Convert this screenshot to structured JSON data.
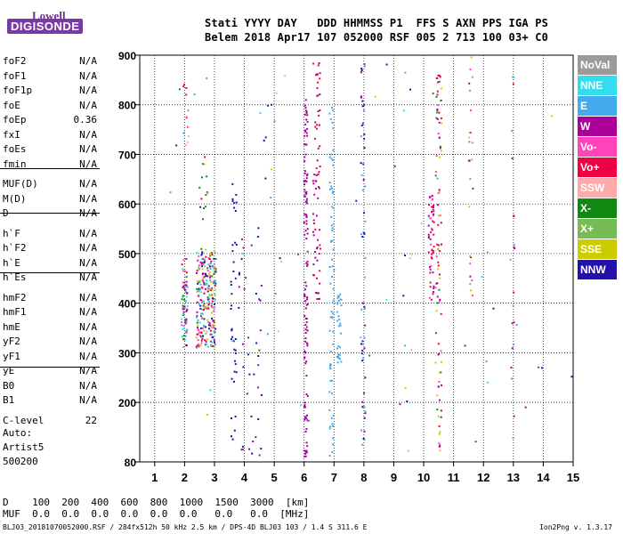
{
  "logo": {
    "top": "Lowell",
    "bottom": "DIGISONDE"
  },
  "header": {
    "keys": "Stati YYYY DAY   DDD HHMMSS P1  FFS S AXN PPS IGA PS",
    "values": "Belem 2018 Apr17 107 052000 RSF 005 2 713 100 03+ C0"
  },
  "params": [
    {
      "name": "foF2",
      "value": "N/A"
    },
    {
      "name": "foF1",
      "value": "N/A"
    },
    {
      "name": "foF1p",
      "value": "N/A"
    },
    {
      "name": "foE",
      "value": "N/A"
    },
    {
      "name": "foEp",
      "value": "0.36"
    },
    {
      "name": "fxI",
      "value": "N/A"
    },
    {
      "name": "foEs",
      "value": "N/A"
    },
    {
      "name": "fmin",
      "value": "N/A"
    },
    {
      "name": "MUF(D)",
      "value": "N/A"
    },
    {
      "name": "M(D)",
      "value": "N/A"
    },
    {
      "name": "D",
      "value": "N/A"
    },
    {
      "name": "h`F",
      "value": "N/A"
    },
    {
      "name": "h`F2",
      "value": "N/A"
    },
    {
      "name": "h`E",
      "value": "N/A"
    },
    {
      "name": "h`Es",
      "value": "N/A"
    },
    {
      "name": "hmF2",
      "value": "N/A"
    },
    {
      "name": "hmF1",
      "value": "N/A"
    },
    {
      "name": "hmE",
      "value": "N/A"
    },
    {
      "name": "yF2",
      "value": "N/A"
    },
    {
      "name": "yF1",
      "value": "N/A"
    },
    {
      "name": "yE",
      "value": "N/A"
    },
    {
      "name": "B0",
      "value": "N/A"
    },
    {
      "name": "B1",
      "value": "N/A"
    },
    {
      "name": "C-level",
      "value": "22"
    }
  ],
  "auto": [
    "Auto:",
    "Artist5",
    "500200"
  ],
  "legend": [
    {
      "label": "NoVal",
      "color": "#9b9b9b"
    },
    {
      "label": "NNE",
      "color": "#33ddee"
    },
    {
      "label": "E",
      "color": "#44aaee"
    },
    {
      "label": "W",
      "color": "#aa0099"
    },
    {
      "label": "Vo-",
      "color": "#ff44bb"
    },
    {
      "label": "Vo+",
      "color": "#ee0044"
    },
    {
      "label": "SSW",
      "color": "#ffaaaa"
    },
    {
      "label": "X-",
      "color": "#118811"
    },
    {
      "label": "X+",
      "color": "#77bb55"
    },
    {
      "label": "SSE",
      "color": "#cccc00"
    },
    {
      "label": "NNW",
      "color": "#2211aa"
    }
  ],
  "bottom": {
    "line1": "D    100  200  400  600  800  1000  1500  3000  [km]",
    "line2": "MUF  0.0  0.0  0.0  0.0  0.0  0.0   0.0   0.0  [MHz]"
  },
  "footer": {
    "left": "BLJ03_20181070052000.RSF / 284fx512h 50 kHz 2.5 km / DPS-4D BLJ03 103 / 1.4 S 311.6 E",
    "right": "Ion2Png v. 1.3.17"
  },
  "chart_data": {
    "type": "scatter",
    "title": "",
    "xlabel": "",
    "ylabel": "",
    "xlim": [
      1,
      15
    ],
    "ylim": [
      80,
      900
    ],
    "x_ticks": [
      1,
      2,
      3,
      4,
      5,
      6,
      7,
      8,
      9,
      10,
      11,
      12,
      13,
      14,
      15
    ],
    "y_ticks": [
      80,
      200,
      300,
      400,
      500,
      600,
      700,
      800,
      900
    ],
    "grid": true,
    "clusters": [
      {
        "x": [
          1.9,
          2.1
        ],
        "y": [
          310,
          490
        ],
        "n": 70,
        "colors": [
          "#ee0044",
          "#ff44bb",
          "#aa0099",
          "#44aaee",
          "#33ddee",
          "#118811"
        ]
      },
      {
        "x": [
          2.4,
          3.05
        ],
        "y": [
          310,
          510
        ],
        "n": 260,
        "colors": [
          "#ee0044",
          "#ff44bb",
          "#aa0099",
          "#44aaee",
          "#33ddee",
          "#2211aa",
          "#118811",
          "#cccc00"
        ]
      },
      {
        "x": [
          1.95,
          2.15
        ],
        "y": [
          680,
          850
        ],
        "n": 14,
        "colors": [
          "#ffaaaa",
          "#ee0044",
          "#44aaee"
        ]
      },
      {
        "x": [
          2.5,
          2.8
        ],
        "y": [
          560,
          700
        ],
        "n": 14,
        "colors": [
          "#118811",
          "#cccc00",
          "#ee0044",
          "#2211aa"
        ]
      },
      {
        "x": [
          3.55,
          3.75
        ],
        "y": [
          100,
          660
        ],
        "n": 40,
        "colors": [
          "#2211aa"
        ]
      },
      {
        "x": [
          3.8,
          4.6
        ],
        "y": [
          90,
          560
        ],
        "n": 40,
        "colors": [
          "#2211aa",
          "#aa0099"
        ]
      },
      {
        "x": [
          4.6,
          5.6
        ],
        "y": [
          250,
          830
        ],
        "n": 14,
        "colors": [
          "#2211aa",
          "#ffaaaa",
          "#44aaee"
        ]
      },
      {
        "x": [
          6.0,
          6.12
        ],
        "y": [
          90,
          820
        ],
        "n": 120,
        "colors": [
          "#aa0099"
        ]
      },
      {
        "x": [
          6.3,
          6.55
        ],
        "y": [
          400,
          890
        ],
        "n": 70,
        "colors": [
          "#aa0099",
          "#ee0044"
        ]
      },
      {
        "x": [
          6.85,
          7.0
        ],
        "y": [
          90,
          800
        ],
        "n": 70,
        "colors": [
          "#44aaee"
        ]
      },
      {
        "x": [
          7.1,
          7.25
        ],
        "y": [
          280,
          420
        ],
        "n": 30,
        "colors": [
          "#44aaee"
        ]
      },
      {
        "x": [
          7.9,
          8.05
        ],
        "y": [
          90,
          900
        ],
        "n": 60,
        "colors": [
          "#aa0099",
          "#44aaee",
          "#2211aa"
        ]
      },
      {
        "x": [
          9.3,
          9.6
        ],
        "y": [
          100,
          900
        ],
        "n": 10,
        "colors": [
          "#44aaee",
          "#2211aa",
          "#ffaaaa"
        ]
      },
      {
        "x": [
          10.15,
          10.35
        ],
        "y": [
          390,
          620
        ],
        "n": 55,
        "colors": [
          "#ee0044",
          "#aa0099",
          "#ff44bb"
        ]
      },
      {
        "x": [
          10.4,
          10.6
        ],
        "y": [
          100,
          880
        ],
        "n": 90,
        "colors": [
          "#ee0044",
          "#ff44bb",
          "#aa0099",
          "#cccc00",
          "#118811"
        ]
      },
      {
        "x": [
          11.5,
          11.65
        ],
        "y": [
          400,
          900
        ],
        "n": 25,
        "colors": [
          "#cccc00",
          "#77bb55",
          "#ff44bb",
          "#aa0099"
        ]
      },
      {
        "x": [
          12.9,
          13.05
        ],
        "y": [
          100,
          900
        ],
        "n": 20,
        "colors": [
          "#aa0099",
          "#44aaee",
          "#ee0044"
        ]
      },
      {
        "x": [
          1.5,
          15.0
        ],
        "y": [
          90,
          900
        ],
        "n": 45,
        "colors": [
          "#44aaee",
          "#2211aa",
          "#aa0099",
          "#ffaaaa",
          "#cccc00",
          "#118811",
          "#33ddee"
        ]
      }
    ]
  }
}
